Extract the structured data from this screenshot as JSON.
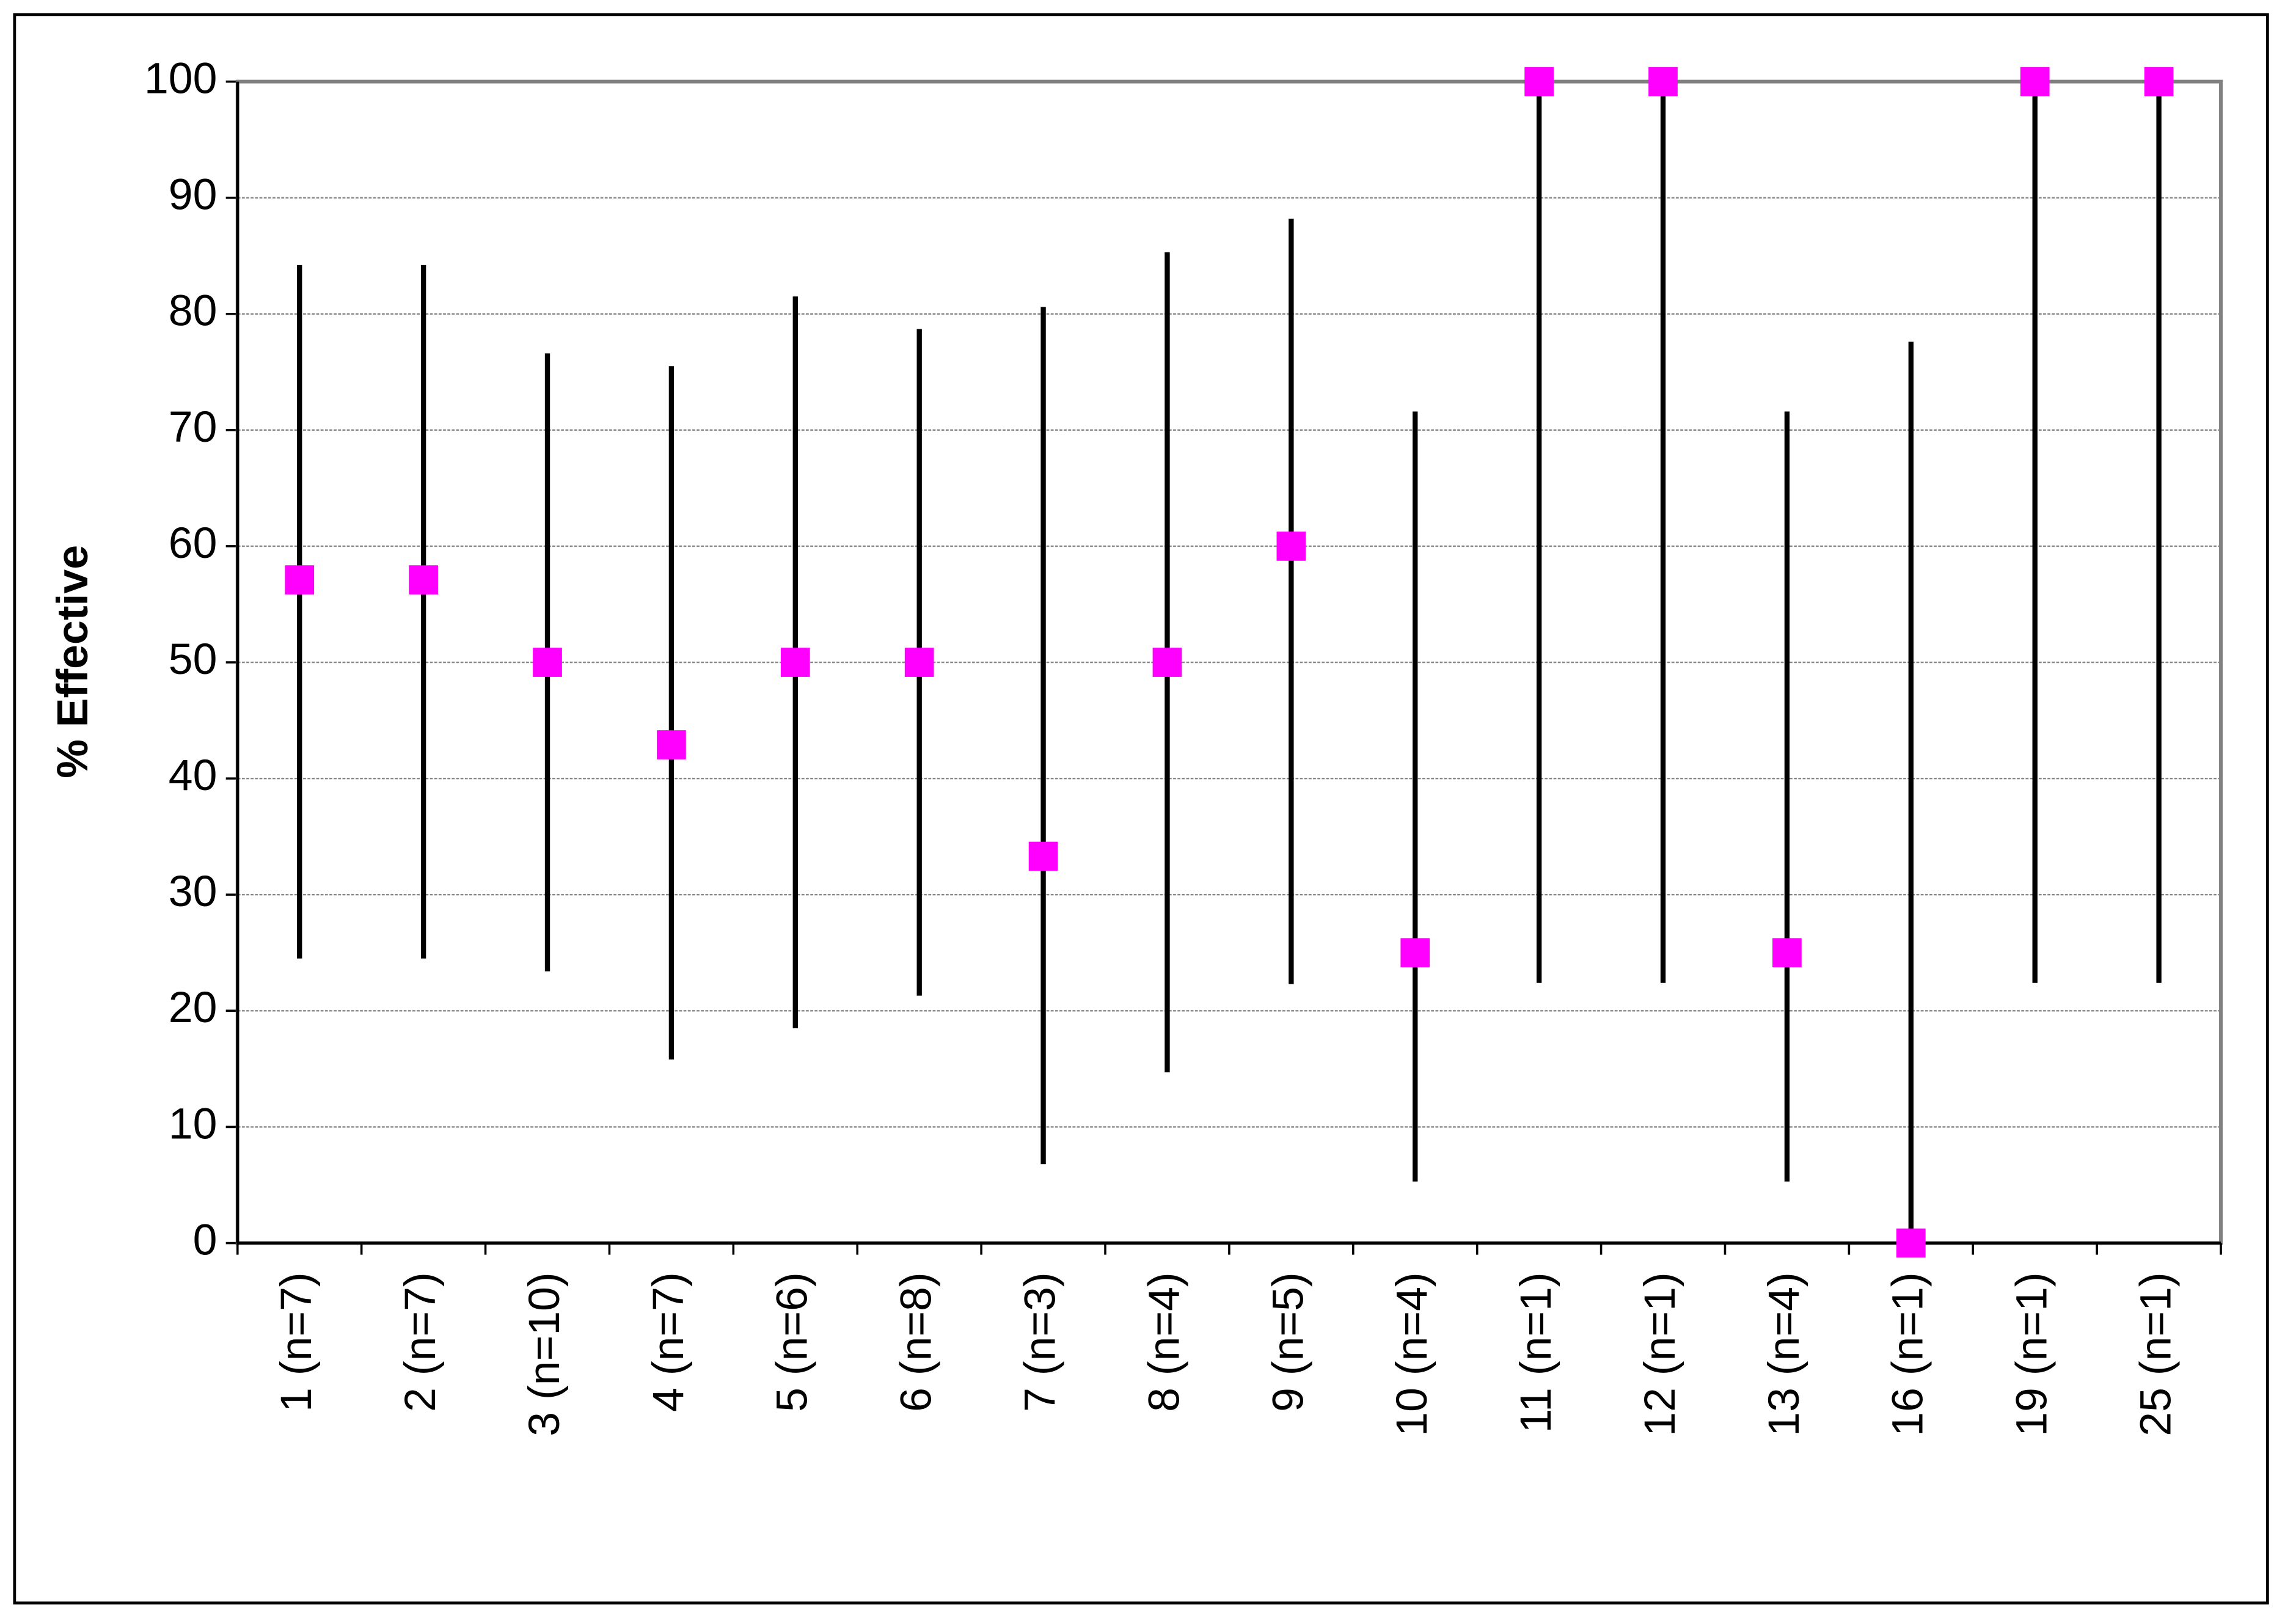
{
  "chart_data": {
    "type": "errorbar",
    "ylabel": "% Effective",
    "categories": [
      "1 (n=7)",
      "2 (n=7)",
      "3 (n=10)",
      "4 (n=7)",
      "5 (n=6)",
      "6 (n=8)",
      "7 (n=3)",
      "8 (n=4)",
      "9 (n=5)",
      "10 (n=4)",
      "11 (n=1)",
      "12 (n=1)",
      "13 (n=4)",
      "16 (n=1)",
      "19 (n=1)",
      "25 (n=1)"
    ],
    "values": [
      57.1,
      57.1,
      50,
      42.9,
      50,
      50,
      33.3,
      50,
      60,
      25,
      100,
      100,
      25,
      0,
      100,
      100
    ],
    "low": [
      24.5,
      24.5,
      23.4,
      15.8,
      18.5,
      21.3,
      6.8,
      14.7,
      22.3,
      5.3,
      22.4,
      22.4,
      5.3,
      0,
      22.4,
      22.4
    ],
    "high": [
      84.2,
      84.2,
      76.6,
      75.5,
      81.5,
      78.7,
      80.6,
      85.3,
      88.2,
      71.6,
      100,
      100,
      71.6,
      77.6,
      100,
      100
    ],
    "color": "#ff00ff",
    "bar_color": "#000000",
    "ylim": [
      0,
      100
    ],
    "yticks": [
      0,
      10,
      20,
      30,
      40,
      50,
      60,
      70,
      80,
      90,
      100
    ],
    "grid": true
  }
}
